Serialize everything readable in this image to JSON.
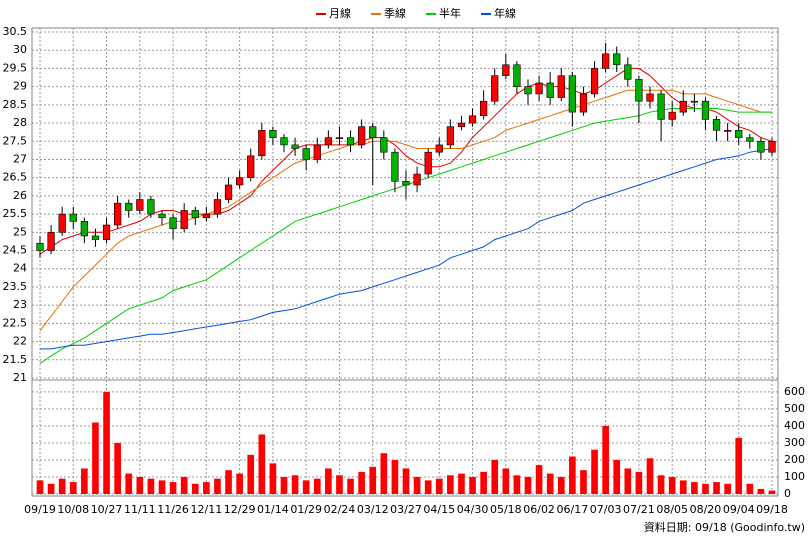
{
  "chart_data": {
    "type": "candlestick",
    "categories": [
      "09/19",
      null,
      null,
      "10/08",
      null,
      null,
      "10/27",
      null,
      null,
      "11/11",
      null,
      null,
      "11/26",
      null,
      null,
      "12/11",
      null,
      null,
      "12/29",
      null,
      null,
      "01/14",
      null,
      null,
      "01/29",
      null,
      null,
      "02/24",
      null,
      null,
      "03/12",
      null,
      null,
      "03/27",
      null,
      null,
      "04/15",
      null,
      null,
      "04/30",
      null,
      null,
      "05/18",
      null,
      null,
      "06/02",
      null,
      null,
      "06/17",
      null,
      null,
      "07/03",
      null,
      null,
      "07/21",
      null,
      null,
      "08/05",
      null,
      null,
      "08/20",
      null,
      null,
      "09/04",
      null,
      null,
      "09/18"
    ],
    "open": [
      24.7,
      24.5,
      25.0,
      25.5,
      25.3,
      24.9,
      24.8,
      25.2,
      25.8,
      25.6,
      25.9,
      25.5,
      25.4,
      25.1,
      25.6,
      25.4,
      25.5,
      25.9,
      26.3,
      26.5,
      27.1,
      27.8,
      27.6,
      27.4,
      27.3,
      27.0,
      27.4,
      27.6,
      27.6,
      27.4,
      27.9,
      27.6,
      27.2,
      26.4,
      26.3,
      26.6,
      27.2,
      27.4,
      27.9,
      28.0,
      28.2,
      28.6,
      29.3,
      29.6,
      29.0,
      28.8,
      29.1,
      28.7,
      29.3,
      28.3,
      28.8,
      29.5,
      29.9,
      29.6,
      29.2,
      28.6,
      28.8,
      28.1,
      28.3,
      28.6,
      28.6,
      28.1,
      27.8,
      27.8,
      27.6,
      27.5,
      27.2
    ],
    "high": [
      24.9,
      25.2,
      25.7,
      25.7,
      25.4,
      25.1,
      25.4,
      26.0,
      25.9,
      26.1,
      26.0,
      25.6,
      25.5,
      25.8,
      25.7,
      25.7,
      26.1,
      26.5,
      26.7,
      27.3,
      28.0,
      27.9,
      27.7,
      27.6,
      27.4,
      27.6,
      27.8,
      27.9,
      27.8,
      28.1,
      28.0,
      27.8,
      27.3,
      26.7,
      26.8,
      27.3,
      27.6,
      28.1,
      28.2,
      28.4,
      28.9,
      29.5,
      29.9,
      29.7,
      29.2,
      29.3,
      29.4,
      29.5,
      29.4,
      29.0,
      29.7,
      30.2,
      30.1,
      29.8,
      29.3,
      29.0,
      28.9,
      28.6,
      28.9,
      28.8,
      28.7,
      28.2,
      28.0,
      28.0,
      27.7,
      27.6,
      27.6
    ],
    "low": [
      24.3,
      24.4,
      24.9,
      25.1,
      24.7,
      24.6,
      24.7,
      25.1,
      25.4,
      25.5,
      25.4,
      25.2,
      24.8,
      25.0,
      25.2,
      25.3,
      25.4,
      25.8,
      26.2,
      26.4,
      27.0,
      27.4,
      27.2,
      27.1,
      26.7,
      26.9,
      27.3,
      27.4,
      27.2,
      27.3,
      26.3,
      27.0,
      26.1,
      25.9,
      26.1,
      26.5,
      27.1,
      27.3,
      27.8,
      27.9,
      28.1,
      28.5,
      29.2,
      28.8,
      28.5,
      28.6,
      28.5,
      28.6,
      27.9,
      28.2,
      28.7,
      29.4,
      29.4,
      29.0,
      28.0,
      28.4,
      27.5,
      27.9,
      28.2,
      28.3,
      27.8,
      27.5,
      27.5,
      27.4,
      27.3,
      27.0,
      27.1
    ],
    "close": [
      24.5,
      25.0,
      25.5,
      25.3,
      24.9,
      24.8,
      25.2,
      25.8,
      25.6,
      25.9,
      25.5,
      25.4,
      25.1,
      25.6,
      25.4,
      25.5,
      25.9,
      26.3,
      26.5,
      27.1,
      27.8,
      27.6,
      27.4,
      27.3,
      27.0,
      27.4,
      27.6,
      27.6,
      27.4,
      27.9,
      27.6,
      27.2,
      26.4,
      26.3,
      26.6,
      27.2,
      27.4,
      27.9,
      28.0,
      28.2,
      28.6,
      29.3,
      29.6,
      29.0,
      28.8,
      29.1,
      28.7,
      29.3,
      28.3,
      28.8,
      29.5,
      29.9,
      29.6,
      29.2,
      28.6,
      28.8,
      28.1,
      28.3,
      28.6,
      28.6,
      28.1,
      27.8,
      27.8,
      27.6,
      27.5,
      27.2,
      27.5
    ],
    "up_color": "#ff0000",
    "down_color": "#00b000",
    "series": [
      {
        "name": "月線",
        "color": "#e00000",
        "values": [
          24.4,
          24.6,
          24.8,
          24.9,
          25.0,
          25.0,
          25.0,
          25.1,
          25.2,
          25.3,
          25.5,
          25.6,
          25.6,
          25.5,
          25.5,
          25.5,
          25.5,
          25.6,
          25.8,
          26.0,
          26.4,
          26.7,
          27.0,
          27.3,
          27.4,
          27.4,
          27.4,
          27.4,
          27.4,
          27.5,
          27.6,
          27.6,
          27.4,
          27.1,
          26.9,
          26.8,
          26.8,
          26.9,
          27.2,
          27.6,
          27.9,
          28.2,
          28.5,
          28.8,
          29.0,
          29.1,
          29.0,
          29.0,
          28.9,
          28.8,
          28.9,
          29.1,
          29.3,
          29.5,
          29.5,
          29.3,
          29.0,
          28.7,
          28.5,
          28.4,
          28.4,
          28.3,
          28.1,
          27.9,
          27.8,
          27.6,
          27.5
        ]
      },
      {
        "name": "季線",
        "color": "#e87000",
        "values": [
          22.3,
          22.7,
          23.1,
          23.5,
          23.8,
          24.1,
          24.4,
          24.7,
          24.9,
          25.0,
          25.1,
          25.2,
          25.3,
          25.3,
          25.4,
          25.5,
          25.6,
          25.7,
          25.9,
          26.1,
          26.3,
          26.5,
          26.7,
          26.9,
          27.0,
          27.1,
          27.2,
          27.3,
          27.4,
          27.4,
          27.5,
          27.5,
          27.5,
          27.4,
          27.3,
          27.3,
          27.3,
          27.3,
          27.3,
          27.4,
          27.5,
          27.6,
          27.8,
          27.9,
          28.0,
          28.1,
          28.2,
          28.3,
          28.4,
          28.5,
          28.6,
          28.7,
          28.8,
          28.9,
          28.9,
          28.9,
          28.9,
          28.9,
          28.8,
          28.8,
          28.8,
          28.7,
          28.6,
          28.5,
          28.4,
          28.3,
          28.3
        ]
      },
      {
        "name": "半年",
        "color": "#00d000",
        "values": [
          21.4,
          21.6,
          21.8,
          21.95,
          22.1,
          22.3,
          22.5,
          22.7,
          22.9,
          23.0,
          23.1,
          23.2,
          23.4,
          23.5,
          23.6,
          23.7,
          23.9,
          24.1,
          24.3,
          24.5,
          24.7,
          24.9,
          25.1,
          25.3,
          25.4,
          25.5,
          25.6,
          25.7,
          25.8,
          25.9,
          26.0,
          26.1,
          26.2,
          26.3,
          26.4,
          26.5,
          26.6,
          26.7,
          26.8,
          26.9,
          27.0,
          27.1,
          27.2,
          27.3,
          27.4,
          27.5,
          27.6,
          27.7,
          27.8,
          27.9,
          28.0,
          28.05,
          28.1,
          28.15,
          28.2,
          28.3,
          28.35,
          28.4,
          28.4,
          28.4,
          28.4,
          28.4,
          28.35,
          28.3,
          28.3,
          28.3,
          28.3
        ]
      },
      {
        "name": "年線",
        "color": "#0050e0",
        "values": [
          21.8,
          21.8,
          21.85,
          21.9,
          21.9,
          21.95,
          22.0,
          22.05,
          22.1,
          22.15,
          22.2,
          22.2,
          22.25,
          22.3,
          22.35,
          22.4,
          22.45,
          22.5,
          22.55,
          22.6,
          22.7,
          22.8,
          22.85,
          22.9,
          23.0,
          23.1,
          23.2,
          23.3,
          23.35,
          23.4,
          23.5,
          23.6,
          23.7,
          23.8,
          23.9,
          24.0,
          24.1,
          24.3,
          24.4,
          24.5,
          24.6,
          24.8,
          24.9,
          25.0,
          25.1,
          25.3,
          25.4,
          25.5,
          25.6,
          25.8,
          25.9,
          26.0,
          26.1,
          26.2,
          26.3,
          26.4,
          26.5,
          26.6,
          26.7,
          26.8,
          26.9,
          27.0,
          27.05,
          27.1,
          27.2,
          27.25,
          27.3
        ]
      }
    ],
    "ylim": [
      21,
      30.5
    ],
    "yticks": [
      21,
      21.5,
      22,
      22.5,
      23,
      23.5,
      24,
      24.5,
      25,
      25.5,
      26,
      26.5,
      27,
      27.5,
      28,
      28.5,
      29,
      29.5,
      30,
      30.5
    ],
    "volume": {
      "color": "#ff0000",
      "values": [
        80,
        60,
        90,
        70,
        150,
        420,
        600,
        300,
        120,
        100,
        90,
        80,
        70,
        100,
        60,
        70,
        90,
        140,
        120,
        230,
        350,
        180,
        100,
        110,
        80,
        90,
        150,
        110,
        90,
        130,
        160,
        240,
        200,
        150,
        100,
        80,
        90,
        110,
        120,
        100,
        130,
        200,
        150,
        110,
        100,
        170,
        120,
        100,
        220,
        140,
        260,
        400,
        200,
        150,
        130,
        210,
        110,
        100,
        80,
        70,
        60,
        70,
        60,
        330,
        60,
        30,
        20
      ],
      "ylim": [
        0,
        670
      ],
      "yticks": [
        0,
        100,
        200,
        300,
        400,
        500,
        600
      ]
    },
    "grid": true,
    "footer": "資料日期: 09/18 (Goodinfo.tw)"
  }
}
